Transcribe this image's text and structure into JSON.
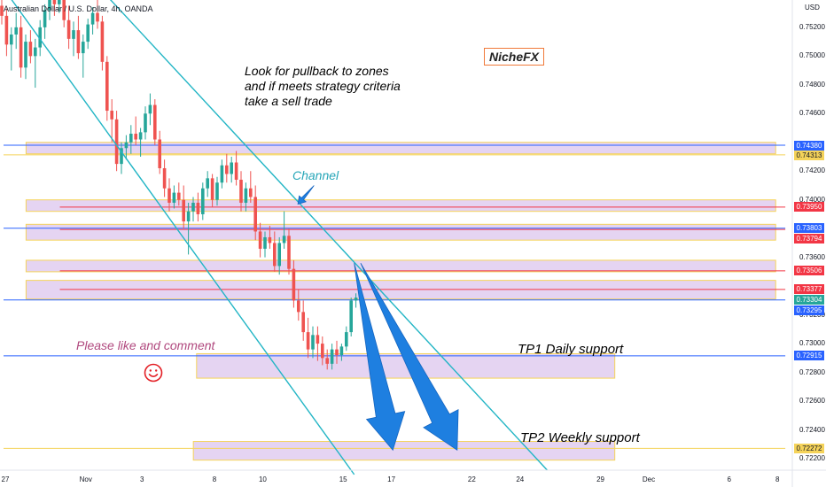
{
  "header": {
    "instrument_title": "Australian Dollar / U.S. Dollar, 4h, OANDA",
    "currency": "USD"
  },
  "brand_label": "NicheFX",
  "annotations": {
    "pullback_lines": [
      "Look for pullback to zones",
      "and if meets strategy criteria",
      "take a sell trade"
    ],
    "channel": "Channel",
    "like": "Please like and comment",
    "tp1": "TP1  Daily support",
    "tp2": "TP2  Weekly support"
  },
  "colors": {
    "up": "#26a69a",
    "down": "#ef5350",
    "channel": "#22b5c5",
    "zone_fill": "#e1cdf0",
    "zone_border": "#f5d35a",
    "blue_line": "#2962ff",
    "red_line": "#f23645",
    "arrow": "#1e7fe0",
    "yellow_line": "#f5d35a",
    "smiley": "#e31e24"
  },
  "chart_data": {
    "type": "candlestick",
    "y_axis": {
      "side": "right",
      "range": [
        0.7212,
        0.7539
      ],
      "tick_labels": [
        "0.75200",
        "0.75000",
        "0.74800",
        "0.74600",
        "0.74200",
        "0.74000",
        "0.73600",
        "0.73200",
        "0.73000",
        "0.72800",
        "0.72600",
        "0.72400",
        "0.72200"
      ],
      "ticks": [
        0.752,
        0.75,
        0.748,
        0.746,
        0.742,
        0.74,
        0.736,
        0.732,
        0.73,
        0.728,
        0.726,
        0.724,
        0.722
      ]
    },
    "x_axis": {
      "tick_labels": [
        "27",
        "Nov",
        "3",
        "8",
        "10",
        "15",
        "17",
        "22",
        "24",
        "29",
        "Dec",
        "6",
        "8"
      ],
      "positions": [
        0.0,
        5.0,
        8.5,
        13.0,
        16.0,
        21.0,
        24.0,
        29.0,
        32.0,
        37.0,
        40.0,
        45.0,
        48.0
      ]
    },
    "price_badges": [
      {
        "label": "0.74380",
        "value": 0.7438,
        "color": "blue"
      },
      {
        "label": "0.74313",
        "value": 0.74313,
        "color": "yellow"
      },
      {
        "label": "0.73950",
        "value": 0.7395,
        "color": "red"
      },
      {
        "label": "0.73803",
        "value": 0.73803,
        "color": "blue"
      },
      {
        "label": "0.73794",
        "value": 0.73794,
        "color": "red"
      },
      {
        "label": "0.73506",
        "value": 0.73506,
        "color": "red"
      },
      {
        "label": "0.73377",
        "value": 0.73377,
        "color": "red"
      },
      {
        "label": "0.73304",
        "value": 0.73304,
        "color": "green"
      },
      {
        "label": "0.73295",
        "value": 0.73295,
        "color": "blue"
      },
      {
        "label": "0.72915",
        "value": 0.72915,
        "color": "blue"
      },
      {
        "label": "0.72272",
        "value": 0.72272,
        "color": "yellow"
      }
    ],
    "zones": [
      {
        "x0": 1.4,
        "x1": 48.0,
        "hi": 0.744,
        "lo": 0.7432
      },
      {
        "x0": 1.4,
        "x1": 48.0,
        "hi": 0.74,
        "lo": 0.7392
      },
      {
        "x0": 1.4,
        "x1": 48.0,
        "hi": 0.7383,
        "lo": 0.7372
      },
      {
        "x0": 1.4,
        "x1": 48.0,
        "hi": 0.7358,
        "lo": 0.735
      },
      {
        "x0": 1.4,
        "x1": 48.0,
        "hi": 0.7344,
        "lo": 0.7331
      },
      {
        "x0": 12.0,
        "x1": 38.0,
        "hi": 0.7293,
        "lo": 0.7276
      },
      {
        "x0": 11.8,
        "x1": 38.0,
        "hi": 0.7232,
        "lo": 0.7219
      }
    ],
    "levels": [
      {
        "value": 0.7438,
        "color": "blue",
        "x0": 0,
        "x1": 48.6
      },
      {
        "value": 0.74313,
        "color": "yellow",
        "x0": 0,
        "x1": 48.6
      },
      {
        "value": 0.7395,
        "color": "red",
        "x0": 3.5,
        "x1": 48.6
      },
      {
        "value": 0.73803,
        "color": "blue",
        "x0": 0,
        "x1": 48.6
      },
      {
        "value": 0.73794,
        "color": "red",
        "x0": 3.5,
        "x1": 48.6
      },
      {
        "value": 0.73506,
        "color": "red",
        "x0": 3.5,
        "x1": 48.6
      },
      {
        "value": 0.73377,
        "color": "red",
        "x0": 3.5,
        "x1": 48.6
      },
      {
        "value": 0.73304,
        "color": "blue",
        "x0": 0,
        "x1": 48.6
      },
      {
        "value": 0.72915,
        "color": "blue",
        "x0": 0,
        "x1": 48.6
      },
      {
        "value": 0.72272,
        "color": "yellow",
        "x0": 0,
        "x1": 48.6
      }
    ],
    "channel_lines": [
      {
        "x0": 0.0,
        "y0": 0.7547,
        "x1": 21.8,
        "y1": 0.7209
      },
      {
        "x0": 5.5,
        "y0": 0.7553,
        "x1": 33.8,
        "y1": 0.7212
      }
    ],
    "arrows": [
      {
        "x0": 21.8,
        "y0": 0.7356,
        "x1": 24.2,
        "y1": 0.7226
      },
      {
        "x0": 22.2,
        "y0": 0.7356,
        "x1": 28.2,
        "y1": 0.7226
      }
    ],
    "small_arrow": {
      "x0": 19.3,
      "y0": 0.741,
      "x1": 18.3,
      "y1": 0.7397
    },
    "candles": [
      [
        0.7535,
        0.7544,
        0.7522,
        0.7528
      ],
      [
        0.7528,
        0.7533,
        0.75,
        0.7508
      ],
      [
        0.7508,
        0.752,
        0.749,
        0.7515
      ],
      [
        0.7515,
        0.753,
        0.7505,
        0.752
      ],
      [
        0.752,
        0.7528,
        0.7485,
        0.7492
      ],
      [
        0.7492,
        0.7515,
        0.7484,
        0.751
      ],
      [
        0.751,
        0.7518,
        0.7495,
        0.75
      ],
      [
        0.75,
        0.7512,
        0.7478,
        0.7506
      ],
      [
        0.7506,
        0.7525,
        0.75,
        0.752
      ],
      [
        0.752,
        0.7536,
        0.7512,
        0.7532
      ],
      [
        0.7532,
        0.7545,
        0.7525,
        0.754
      ],
      [
        0.754,
        0.7548,
        0.7528,
        0.7536
      ],
      [
        0.7536,
        0.7546,
        0.753,
        0.7543
      ],
      [
        0.7543,
        0.755,
        0.752,
        0.7525
      ],
      [
        0.7525,
        0.7535,
        0.7505,
        0.7512
      ],
      [
        0.7512,
        0.7524,
        0.75,
        0.7518
      ],
      [
        0.7518,
        0.7528,
        0.7498,
        0.7502
      ],
      [
        0.7502,
        0.7515,
        0.7485,
        0.751
      ],
      [
        0.751,
        0.7526,
        0.7505,
        0.7522
      ],
      [
        0.7522,
        0.7534,
        0.7515,
        0.753
      ],
      [
        0.753,
        0.754,
        0.7519,
        0.7524
      ],
      [
        0.7524,
        0.7528,
        0.749,
        0.7496
      ],
      [
        0.7496,
        0.75,
        0.7455,
        0.7462
      ],
      [
        0.7462,
        0.747,
        0.744,
        0.7456
      ],
      [
        0.7456,
        0.7462,
        0.742,
        0.7425
      ],
      [
        0.7425,
        0.744,
        0.7418,
        0.7436
      ],
      [
        0.7436,
        0.7445,
        0.7428,
        0.744
      ],
      [
        0.744,
        0.7452,
        0.7432,
        0.7446
      ],
      [
        0.7446,
        0.7458,
        0.7438,
        0.7442
      ],
      [
        0.7442,
        0.745,
        0.743,
        0.7447
      ],
      [
        0.7447,
        0.7465,
        0.7442,
        0.746
      ],
      [
        0.746,
        0.7474,
        0.7452,
        0.7466
      ],
      [
        0.7466,
        0.747,
        0.7438,
        0.7442
      ],
      [
        0.7442,
        0.7448,
        0.7418,
        0.7422
      ],
      [
        0.7422,
        0.7428,
        0.7402,
        0.7408
      ],
      [
        0.7408,
        0.7415,
        0.7392,
        0.7398
      ],
      [
        0.7398,
        0.741,
        0.7394,
        0.7405
      ],
      [
        0.7405,
        0.7412,
        0.7396,
        0.74
      ],
      [
        0.74,
        0.741,
        0.738,
        0.7385
      ],
      [
        0.7385,
        0.7398,
        0.7362,
        0.7392
      ],
      [
        0.7392,
        0.7402,
        0.7385,
        0.7398
      ],
      [
        0.7398,
        0.7405,
        0.7385,
        0.739
      ],
      [
        0.739,
        0.7412,
        0.7386,
        0.7408
      ],
      [
        0.7408,
        0.742,
        0.7402,
        0.7415
      ],
      [
        0.7415,
        0.7418,
        0.7395,
        0.74
      ],
      [
        0.74,
        0.7416,
        0.7396,
        0.7412
      ],
      [
        0.7412,
        0.7428,
        0.7408,
        0.7424
      ],
      [
        0.7424,
        0.7432,
        0.7412,
        0.7418
      ],
      [
        0.7418,
        0.743,
        0.7412,
        0.7426
      ],
      [
        0.7426,
        0.7434,
        0.741,
        0.7414
      ],
      [
        0.7414,
        0.742,
        0.7392,
        0.7398
      ],
      [
        0.7398,
        0.7412,
        0.7392,
        0.7408
      ],
      [
        0.7408,
        0.742,
        0.7398,
        0.7402
      ],
      [
        0.7402,
        0.741,
        0.7372,
        0.7378
      ],
      [
        0.7378,
        0.7384,
        0.736,
        0.7366
      ],
      [
        0.7366,
        0.7378,
        0.736,
        0.7374
      ],
      [
        0.7374,
        0.7382,
        0.7366,
        0.737
      ],
      [
        0.737,
        0.7378,
        0.735,
        0.7354
      ],
      [
        0.7354,
        0.7374,
        0.7348,
        0.737
      ],
      [
        0.737,
        0.7392,
        0.7366,
        0.7375
      ],
      [
        0.7375,
        0.738,
        0.7348,
        0.7352
      ],
      [
        0.7352,
        0.7358,
        0.7325,
        0.733
      ],
      [
        0.733,
        0.7338,
        0.7316,
        0.7322
      ],
      [
        0.7322,
        0.733,
        0.7302,
        0.7308
      ],
      [
        0.7308,
        0.7318,
        0.729,
        0.7296
      ],
      [
        0.7296,
        0.7312,
        0.729,
        0.7306
      ],
      [
        0.7306,
        0.7312,
        0.7288,
        0.73
      ],
      [
        0.73,
        0.7305,
        0.7285,
        0.729
      ],
      [
        0.729,
        0.7296,
        0.7282,
        0.7286
      ],
      [
        0.7286,
        0.73,
        0.7282,
        0.7296
      ],
      [
        0.7296,
        0.7302,
        0.7286,
        0.7292
      ],
      [
        0.7292,
        0.73,
        0.7288,
        0.7298
      ],
      [
        0.7298,
        0.7312,
        0.7295,
        0.7308
      ],
      [
        0.7308,
        0.7332,
        0.7305,
        0.733
      ],
      [
        0.733,
        0.7335,
        0.7325,
        0.7332
      ]
    ]
  }
}
